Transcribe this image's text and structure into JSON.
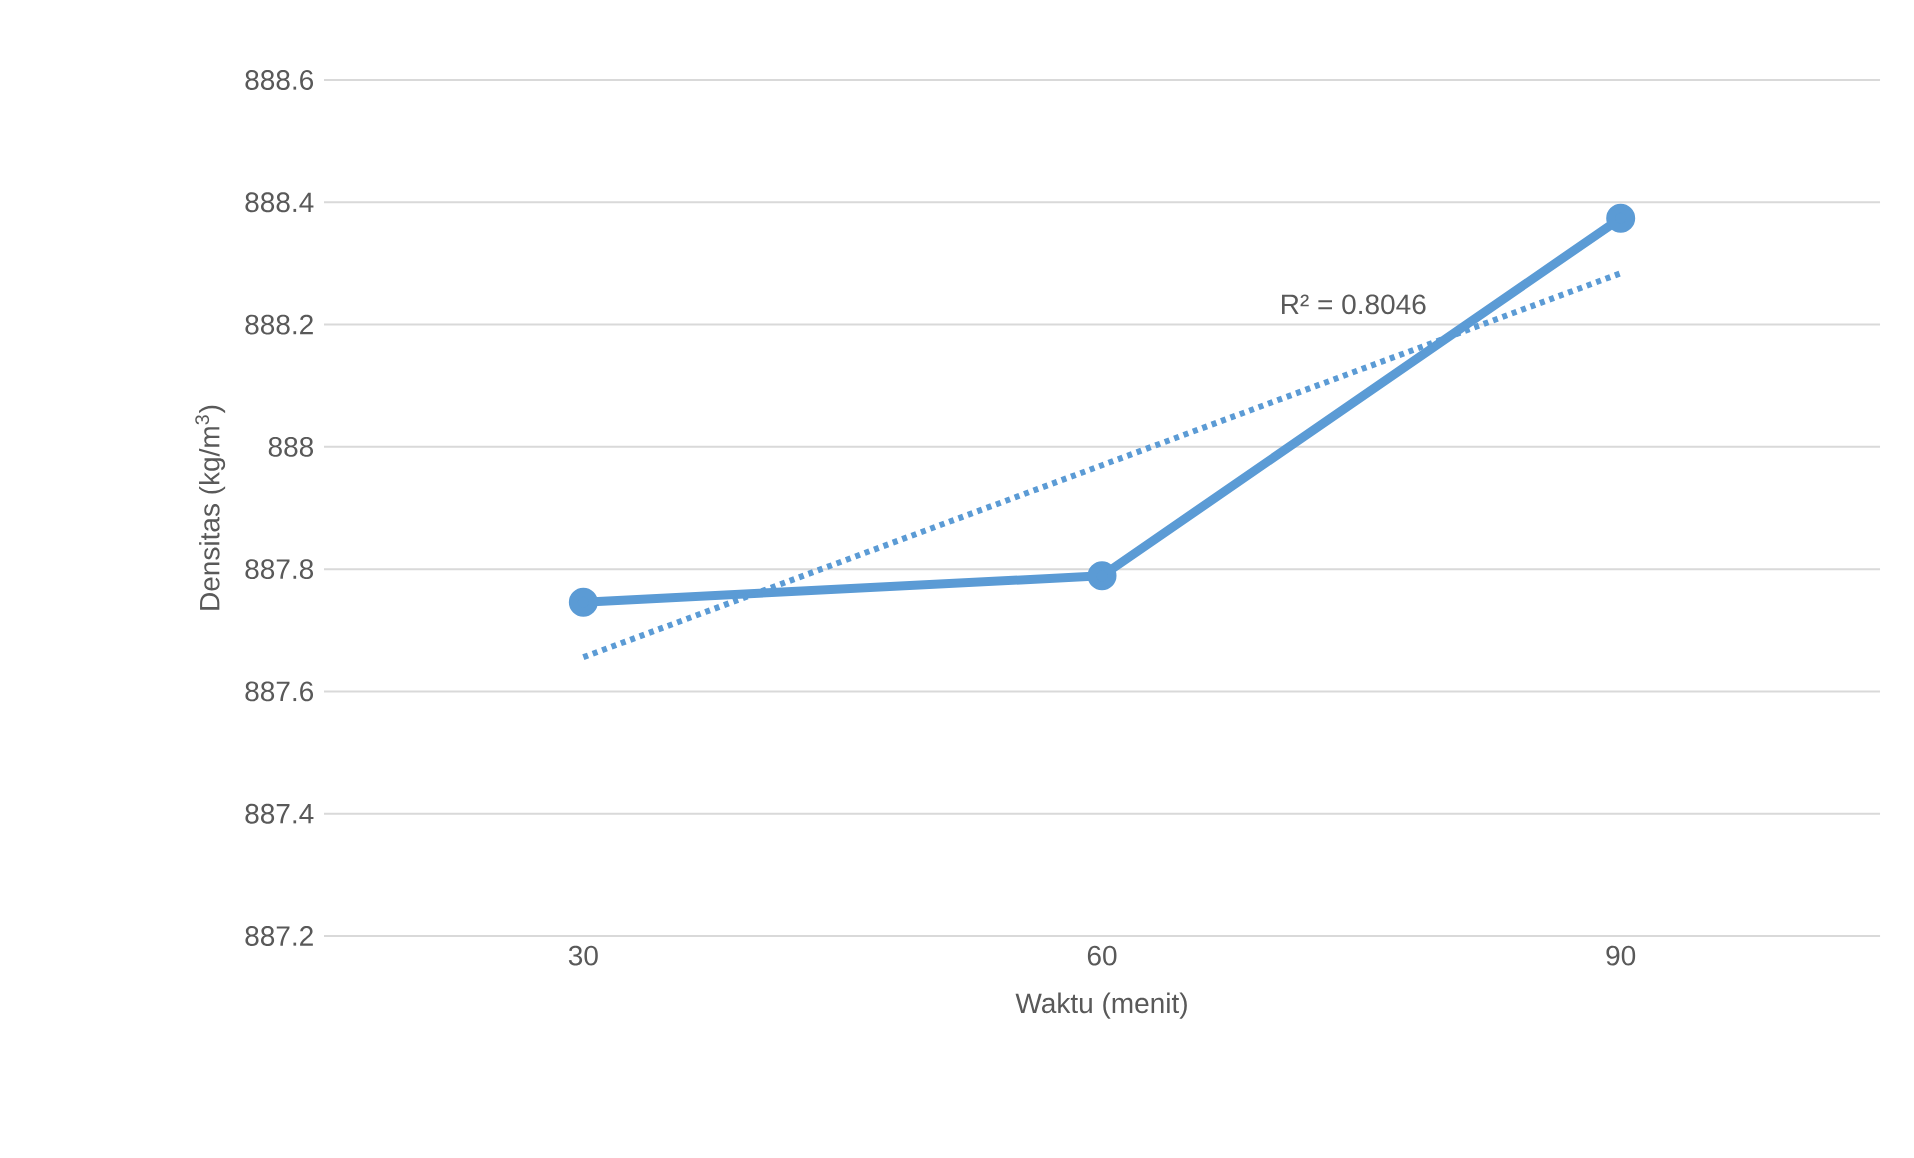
{
  "chart_data": {
    "type": "line",
    "xlabel": "Waktu (menit)",
    "ylabel": "Densitas (kg/m$^{3}$)",
    "categories": [
      "30",
      "60",
      "90"
    ],
    "series": [
      {
        "color": "#5b9bd5",
        "values": [
          887.746,
          887.789,
          888.374
        ],
        "marker": "circle",
        "line_style": "solid"
      },
      {
        "color": "#5b9bd5",
        "values": [
          887.656,
          887.97,
          888.284
        ],
        "marker": "none",
        "line_style": "dotted"
      }
    ],
    "ylim": [
      887.2,
      888.6
    ],
    "yticks": [
      887.2,
      887.4,
      887.6,
      887.8,
      888,
      888.2,
      888.4,
      888.6
    ],
    "grid": "y",
    "annotations": [
      "R² = 0.8046"
    ]
  }
}
